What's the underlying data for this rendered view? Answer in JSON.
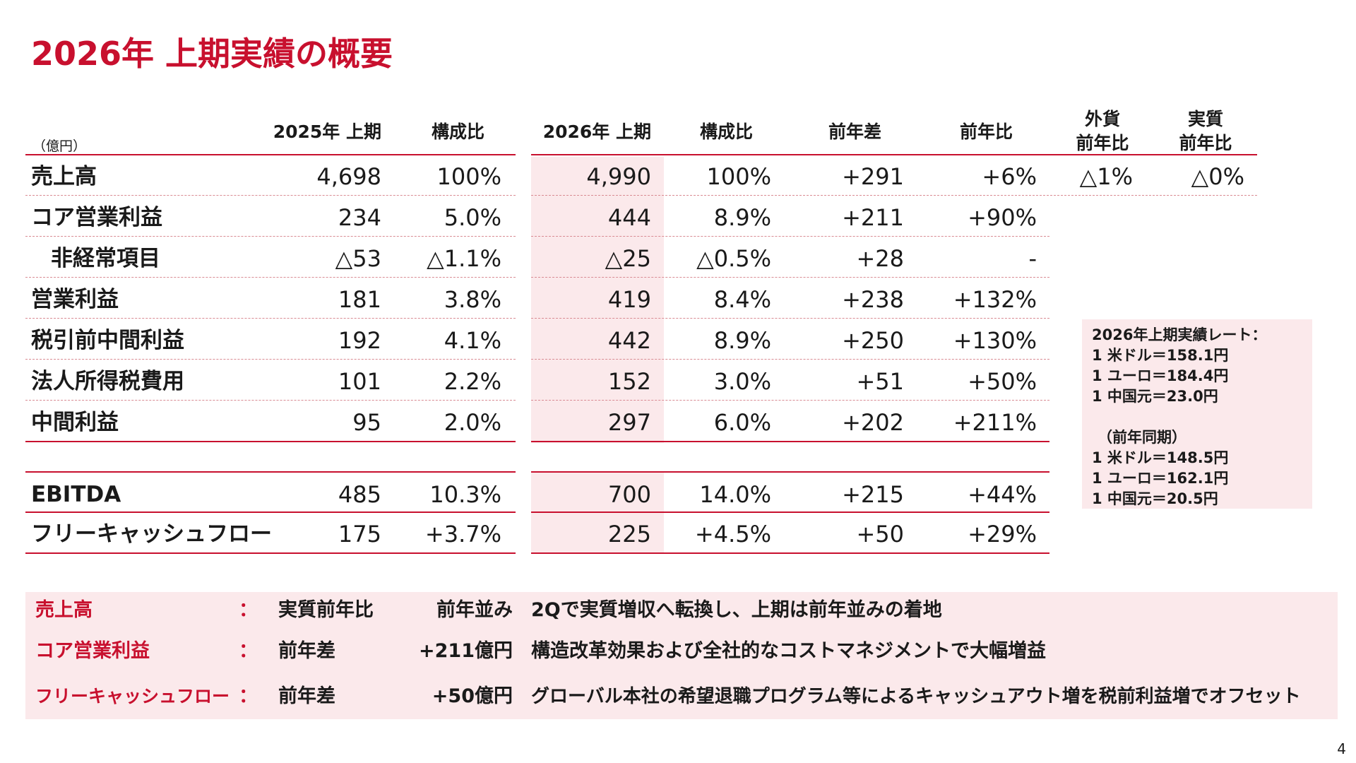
{
  "title": "2026年 上期実績の概要",
  "unit": "（億円）",
  "headers": {
    "prev_half": "2025年 上期",
    "prev_ratio": "構成比",
    "curr_half": "2026年 上期",
    "curr_ratio": "構成比",
    "yoy_diff": "前年差",
    "yoy_rate": "前年比",
    "fx_yoy_line1": "外貨",
    "fx_yoy_line2": "前年比",
    "real_yoy_line1": "実質",
    "real_yoy_line2": "前年比"
  },
  "rows": [
    {
      "label": "売上高",
      "prev": "4,698",
      "prev_ratio": "100%",
      "curr": "4,990",
      "curr_ratio": "100%",
      "diff": "+291",
      "rate": "+6%",
      "fx": "△1%",
      "real": "△0%"
    },
    {
      "label": "コア営業利益",
      "prev": "234",
      "prev_ratio": "5.0%",
      "curr": "444",
      "curr_ratio": "8.9%",
      "diff": "+211",
      "rate": "+90%"
    },
    {
      "label": "非経常項目",
      "prev": "△53",
      "prev_ratio": "△1.1%",
      "curr": "△25",
      "curr_ratio": "△0.5%",
      "diff": "+28",
      "rate": "-"
    },
    {
      "label": "営業利益",
      "prev": "181",
      "prev_ratio": "3.8%",
      "curr": "419",
      "curr_ratio": "8.4%",
      "diff": "+238",
      "rate": "+132%"
    },
    {
      "label": "税引前中間利益",
      "prev": "192",
      "prev_ratio": "4.1%",
      "curr": "442",
      "curr_ratio": "8.9%",
      "diff": "+250",
      "rate": "+130%"
    },
    {
      "label": "法人所得税費用",
      "prev": "101",
      "prev_ratio": "2.2%",
      "curr": "152",
      "curr_ratio": "3.0%",
      "diff": "+51",
      "rate": "+50%"
    },
    {
      "label": "中間利益",
      "prev": "95",
      "prev_ratio": "2.0%",
      "curr": "297",
      "curr_ratio": "6.0%",
      "diff": "+202",
      "rate": "+211%"
    },
    {
      "label": "EBITDA",
      "prev": "485",
      "prev_ratio": "10.3%",
      "curr": "700",
      "curr_ratio": "14.0%",
      "diff": "+215",
      "rate": "+44%"
    },
    {
      "label": "フリーキャッシュフロー",
      "prev": "175",
      "prev_ratio": "+3.7%",
      "curr": "225",
      "curr_ratio": "+4.5%",
      "diff": "+50",
      "rate": "+29%"
    }
  ],
  "rates": {
    "title": "2026年上期実績レート：",
    "current": [
      "1 米ドル＝158.1円",
      "1 ユーロ＝184.4円",
      "1 中国元＝23.0円"
    ],
    "prev_title": "（前年同期）",
    "previous": [
      "1 米ドル＝148.5円",
      "1 ユーロ＝162.1円",
      "1 中国元＝20.5円"
    ]
  },
  "summary": [
    {
      "label": "売上高",
      "colon": "：",
      "metric": "実質前年比",
      "value": "前年並み",
      "comment": "2Qで実質増収へ転換し、上期は前年並みの着地"
    },
    {
      "label": "コア営業利益",
      "colon": "：",
      "metric": "前年差",
      "value": "+211億円",
      "comment": "構造改革効果および全社的なコストマネジメントで大幅増益"
    },
    {
      "label": "フリーキャッシュフロー",
      "colon": "：",
      "metric": "前年差",
      "value": "+50億円",
      "comment": "グローバル本社の希望退職プログラム等によるキャッシュアウト増を税前利益増でオフセット"
    }
  ],
  "page_number": "4",
  "colors": {
    "accent": "#c8102e",
    "shade": "#fbe9eb"
  }
}
